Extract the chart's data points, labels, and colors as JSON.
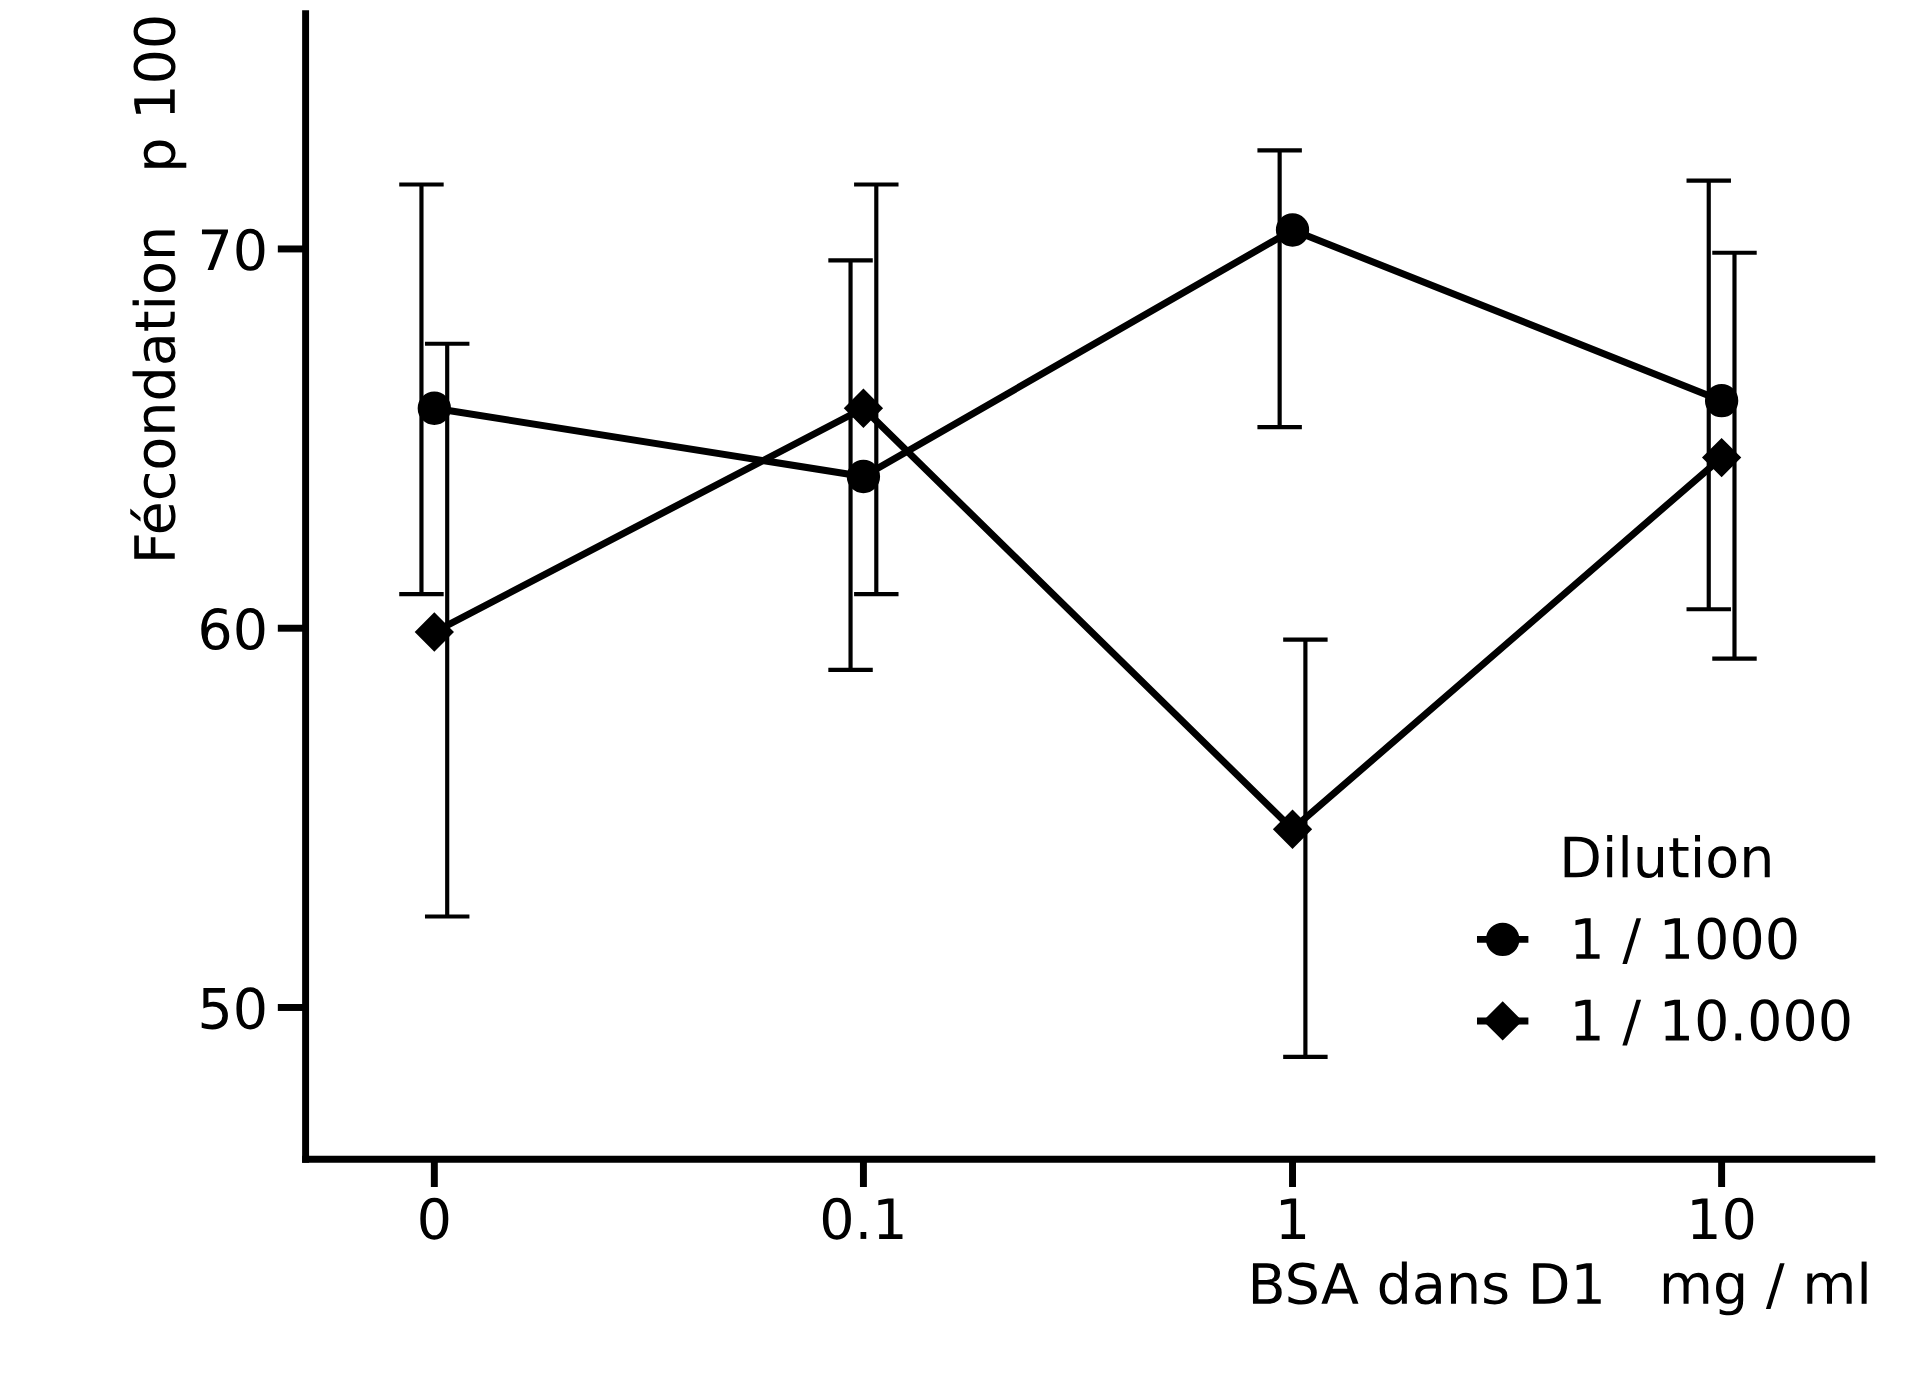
{
  "chart_data": {
    "type": "line",
    "xlabel": "BSA dans D1   mg / ml",
    "ylabel": "Fécondation   p 100",
    "legend_title": "Dilution",
    "categories": [
      "0",
      "0.1",
      "1",
      "10"
    ],
    "series": [
      {
        "name": "1 / 1000",
        "color": "#000000",
        "marker": "circle",
        "values": [
          65.8,
          64.0,
          70.5,
          66.0
        ],
        "errors": [
          [
            60.9,
            71.7
          ],
          [
            58.9,
            69.7
          ],
          [
            65.3,
            72.6
          ],
          [
            60.5,
            71.8
          ]
        ]
      },
      {
        "name": "1 / 10.000",
        "color": "#000000",
        "marker": "diamond",
        "values": [
          59.9,
          65.8,
          54.7,
          64.5
        ],
        "errors": [
          [
            52.4,
            67.5
          ],
          [
            60.9,
            71.7
          ],
          [
            48.7,
            59.7
          ],
          [
            59.2,
            69.9
          ]
        ]
      }
    ],
    "ylim": [
      46,
      76.2
    ],
    "yticks": [
      50,
      60,
      70
    ],
    "grid": false,
    "legend": "bottom right",
    "line_style": "solid"
  }
}
